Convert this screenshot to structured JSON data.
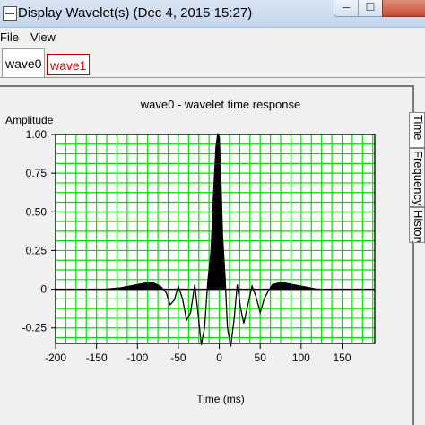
{
  "window": {
    "title": "Display Wavelet(s)  (Dec 4, 2015  15:27)",
    "min": "─",
    "max": "☐",
    "close": ""
  },
  "menu": [
    {
      "label": "File"
    },
    {
      "label": "View"
    }
  ],
  "tabs": [
    {
      "label": "wave0",
      "active": true
    },
    {
      "label": "wave1",
      "active": false
    }
  ],
  "side_tabs": [
    {
      "label": "Time"
    },
    {
      "label": "Frequency"
    },
    {
      "label": "History"
    }
  ],
  "colors": {
    "plot_bg": "#ffffff",
    "grid": "#00e000",
    "trace": "#000000",
    "inactive_tab": "#e00000"
  },
  "chart_data": {
    "type": "line",
    "title": "wave0 - wavelet time response",
    "xlabel": "Time (ms)",
    "ylabel": "Amplitude",
    "xlim": [
      -200,
      190
    ],
    "ylim": [
      -0.35,
      1.0
    ],
    "xticks": [
      -200,
      -150,
      -100,
      -50,
      0,
      50,
      100,
      150
    ],
    "yticks": [
      1.0,
      0.75,
      0.5,
      0.25,
      0,
      -0.25
    ],
    "ytick_labels": [
      "1.00",
      "0.75",
      "0.50",
      "0.25",
      "0",
      "-0.25"
    ],
    "grid": true,
    "series": [
      {
        "fill_positive": true,
        "x": [
          -140,
          -120,
          -100,
          -90,
          -80,
          -72,
          -65,
          -60,
          -55,
          -50,
          -45,
          -40,
          -35,
          -30,
          -26,
          -22,
          -18,
          -14,
          -10,
          -7,
          -4,
          -2,
          0,
          2,
          4,
          7,
          10,
          14,
          18,
          22,
          26,
          30,
          35,
          40,
          45,
          50,
          55,
          60,
          65,
          72,
          80,
          90,
          100,
          110,
          120,
          140
        ],
        "y": [
          0,
          0.01,
          0.03,
          0.04,
          0.04,
          0.02,
          -0.02,
          -0.1,
          -0.07,
          0.02,
          -0.06,
          -0.2,
          -0.15,
          0.03,
          -0.15,
          -0.36,
          -0.25,
          0.05,
          0.25,
          0.62,
          0.92,
          1.0,
          0.98,
          0.7,
          0.35,
          0.08,
          -0.25,
          -0.37,
          -0.2,
          0.03,
          -0.12,
          -0.22,
          -0.1,
          0.02,
          -0.05,
          -0.15,
          -0.06,
          -0.01,
          0.03,
          0.04,
          0.04,
          0.03,
          0.02,
          0.01,
          0,
          0
        ]
      }
    ]
  }
}
